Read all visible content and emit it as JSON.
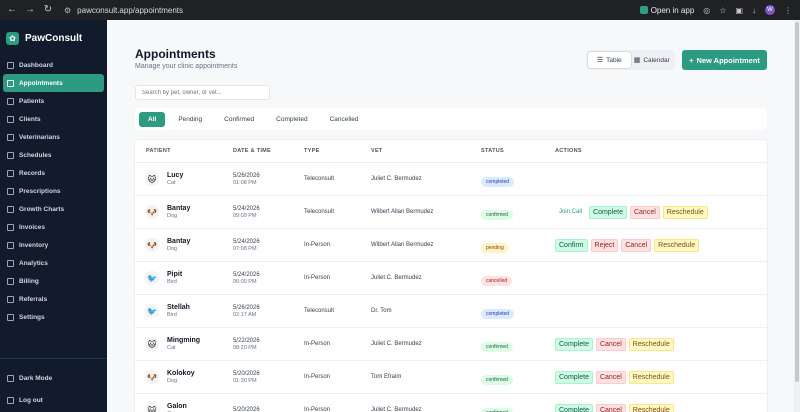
{
  "browser": {
    "url": "pawconsult.app/appointments",
    "open_in_app": "Open in app",
    "avatar_letter": "W"
  },
  "sidebar": {
    "brand": "PawConsult",
    "items": [
      {
        "label": "Dashboard",
        "icon": "dashboard-icon",
        "active": false
      },
      {
        "label": "Appointments",
        "icon": "calendar-icon",
        "active": true
      },
      {
        "label": "Patients",
        "icon": "paw-icon",
        "active": false
      },
      {
        "label": "Clients",
        "icon": "user-icon",
        "active": false
      },
      {
        "label": "Veterinarians",
        "icon": "stethoscope-icon",
        "active": false
      },
      {
        "label": "Schedules",
        "icon": "clock-icon",
        "active": false
      },
      {
        "label": "Records",
        "icon": "file-icon",
        "active": false
      },
      {
        "label": "Prescriptions",
        "icon": "pill-icon",
        "active": false
      },
      {
        "label": "Growth Charts",
        "icon": "chart-icon",
        "active": false
      },
      {
        "label": "Invoices",
        "icon": "invoice-icon",
        "active": false
      },
      {
        "label": "Inventory",
        "icon": "box-icon",
        "active": false
      },
      {
        "label": "Analytics",
        "icon": "analytics-icon",
        "active": false
      },
      {
        "label": "Billing",
        "icon": "billing-icon",
        "active": false
      },
      {
        "label": "Referrals",
        "icon": "referral-icon",
        "active": false
      },
      {
        "label": "Settings",
        "icon": "gear-icon",
        "active": false
      }
    ],
    "dark_mode": "Dark Mode",
    "logout": "Log out"
  },
  "header": {
    "title": "Appointments",
    "subtitle": "Manage your clinic appointments",
    "view_table": "Table",
    "view_calendar": "Calendar",
    "new_button": "New Appointment",
    "search_placeholder": "Search by pet, owner, or vet..."
  },
  "filters": [
    "All",
    "Pending",
    "Confirmed",
    "Completed",
    "Cancelled"
  ],
  "table": {
    "columns": [
      "PATIENT",
      "DATE & TIME",
      "TYPE",
      "VET",
      "STATUS",
      "ACTIONS"
    ],
    "rows": [
      {
        "name": "Lucy",
        "species": "Cat",
        "emoji": "🐱",
        "date": "5/26/2026",
        "time": "01:08 PM",
        "type": "Teleconsult",
        "vet": "Juliet C. Bermudez",
        "status": "completed",
        "actions": []
      },
      {
        "name": "Bantay",
        "species": "Dog",
        "emoji": "🐶",
        "date": "5/24/2026",
        "time": "09:09 PM",
        "type": "Teleconsult",
        "vet": "Wilbert Allan Bermudez",
        "status": "confirmed",
        "actions": [
          "Join Call",
          "Complete",
          "Cancel",
          "Reschedule"
        ]
      },
      {
        "name": "Bantay",
        "species": "Dog",
        "emoji": "🐶",
        "date": "5/24/2026",
        "time": "07:08 PM",
        "type": "In-Person",
        "vet": "Wilbert Allan Bermudez",
        "status": "pending",
        "actions": [
          "Confirm",
          "Reject",
          "Cancel",
          "Reschedule"
        ]
      },
      {
        "name": "Pipit",
        "species": "Bird",
        "emoji": "🐦",
        "date": "5/24/2026",
        "time": "06:00 PM",
        "type": "In-Person",
        "vet": "Juliet C. Bermudez",
        "status": "cancelled",
        "actions": []
      },
      {
        "name": "Stellah",
        "species": "Bird",
        "emoji": "🐦",
        "date": "5/26/2026",
        "time": "02:17 AM",
        "type": "Teleconsult",
        "vet": "Dr. Tom",
        "status": "completed",
        "actions": []
      },
      {
        "name": "Mingming",
        "species": "Cat",
        "emoji": "🐱",
        "date": "5/22/2026",
        "time": "08:20 PM",
        "type": "In-Person",
        "vet": "Juliet C. Bermudez",
        "status": "confirmed",
        "actions": [
          "Complete",
          "Cancel",
          "Reschedule"
        ]
      },
      {
        "name": "Kolokoy",
        "species": "Dog",
        "emoji": "🐶",
        "date": "5/20/2026",
        "time": "01:30 PM",
        "type": "In-Person",
        "vet": "Tom Efraim",
        "status": "confirmed",
        "actions": [
          "Complete",
          "Cancel",
          "Reschedule"
        ]
      },
      {
        "name": "Galon",
        "species": "Cat",
        "emoji": "🐱",
        "date": "5/20/2026",
        "time": "",
        "type": "In-Person",
        "vet": "Juliet C. Bermudez",
        "status": "confirmed",
        "actions": [
          "Complete",
          "Cancel",
          "Reschedule"
        ]
      }
    ]
  }
}
